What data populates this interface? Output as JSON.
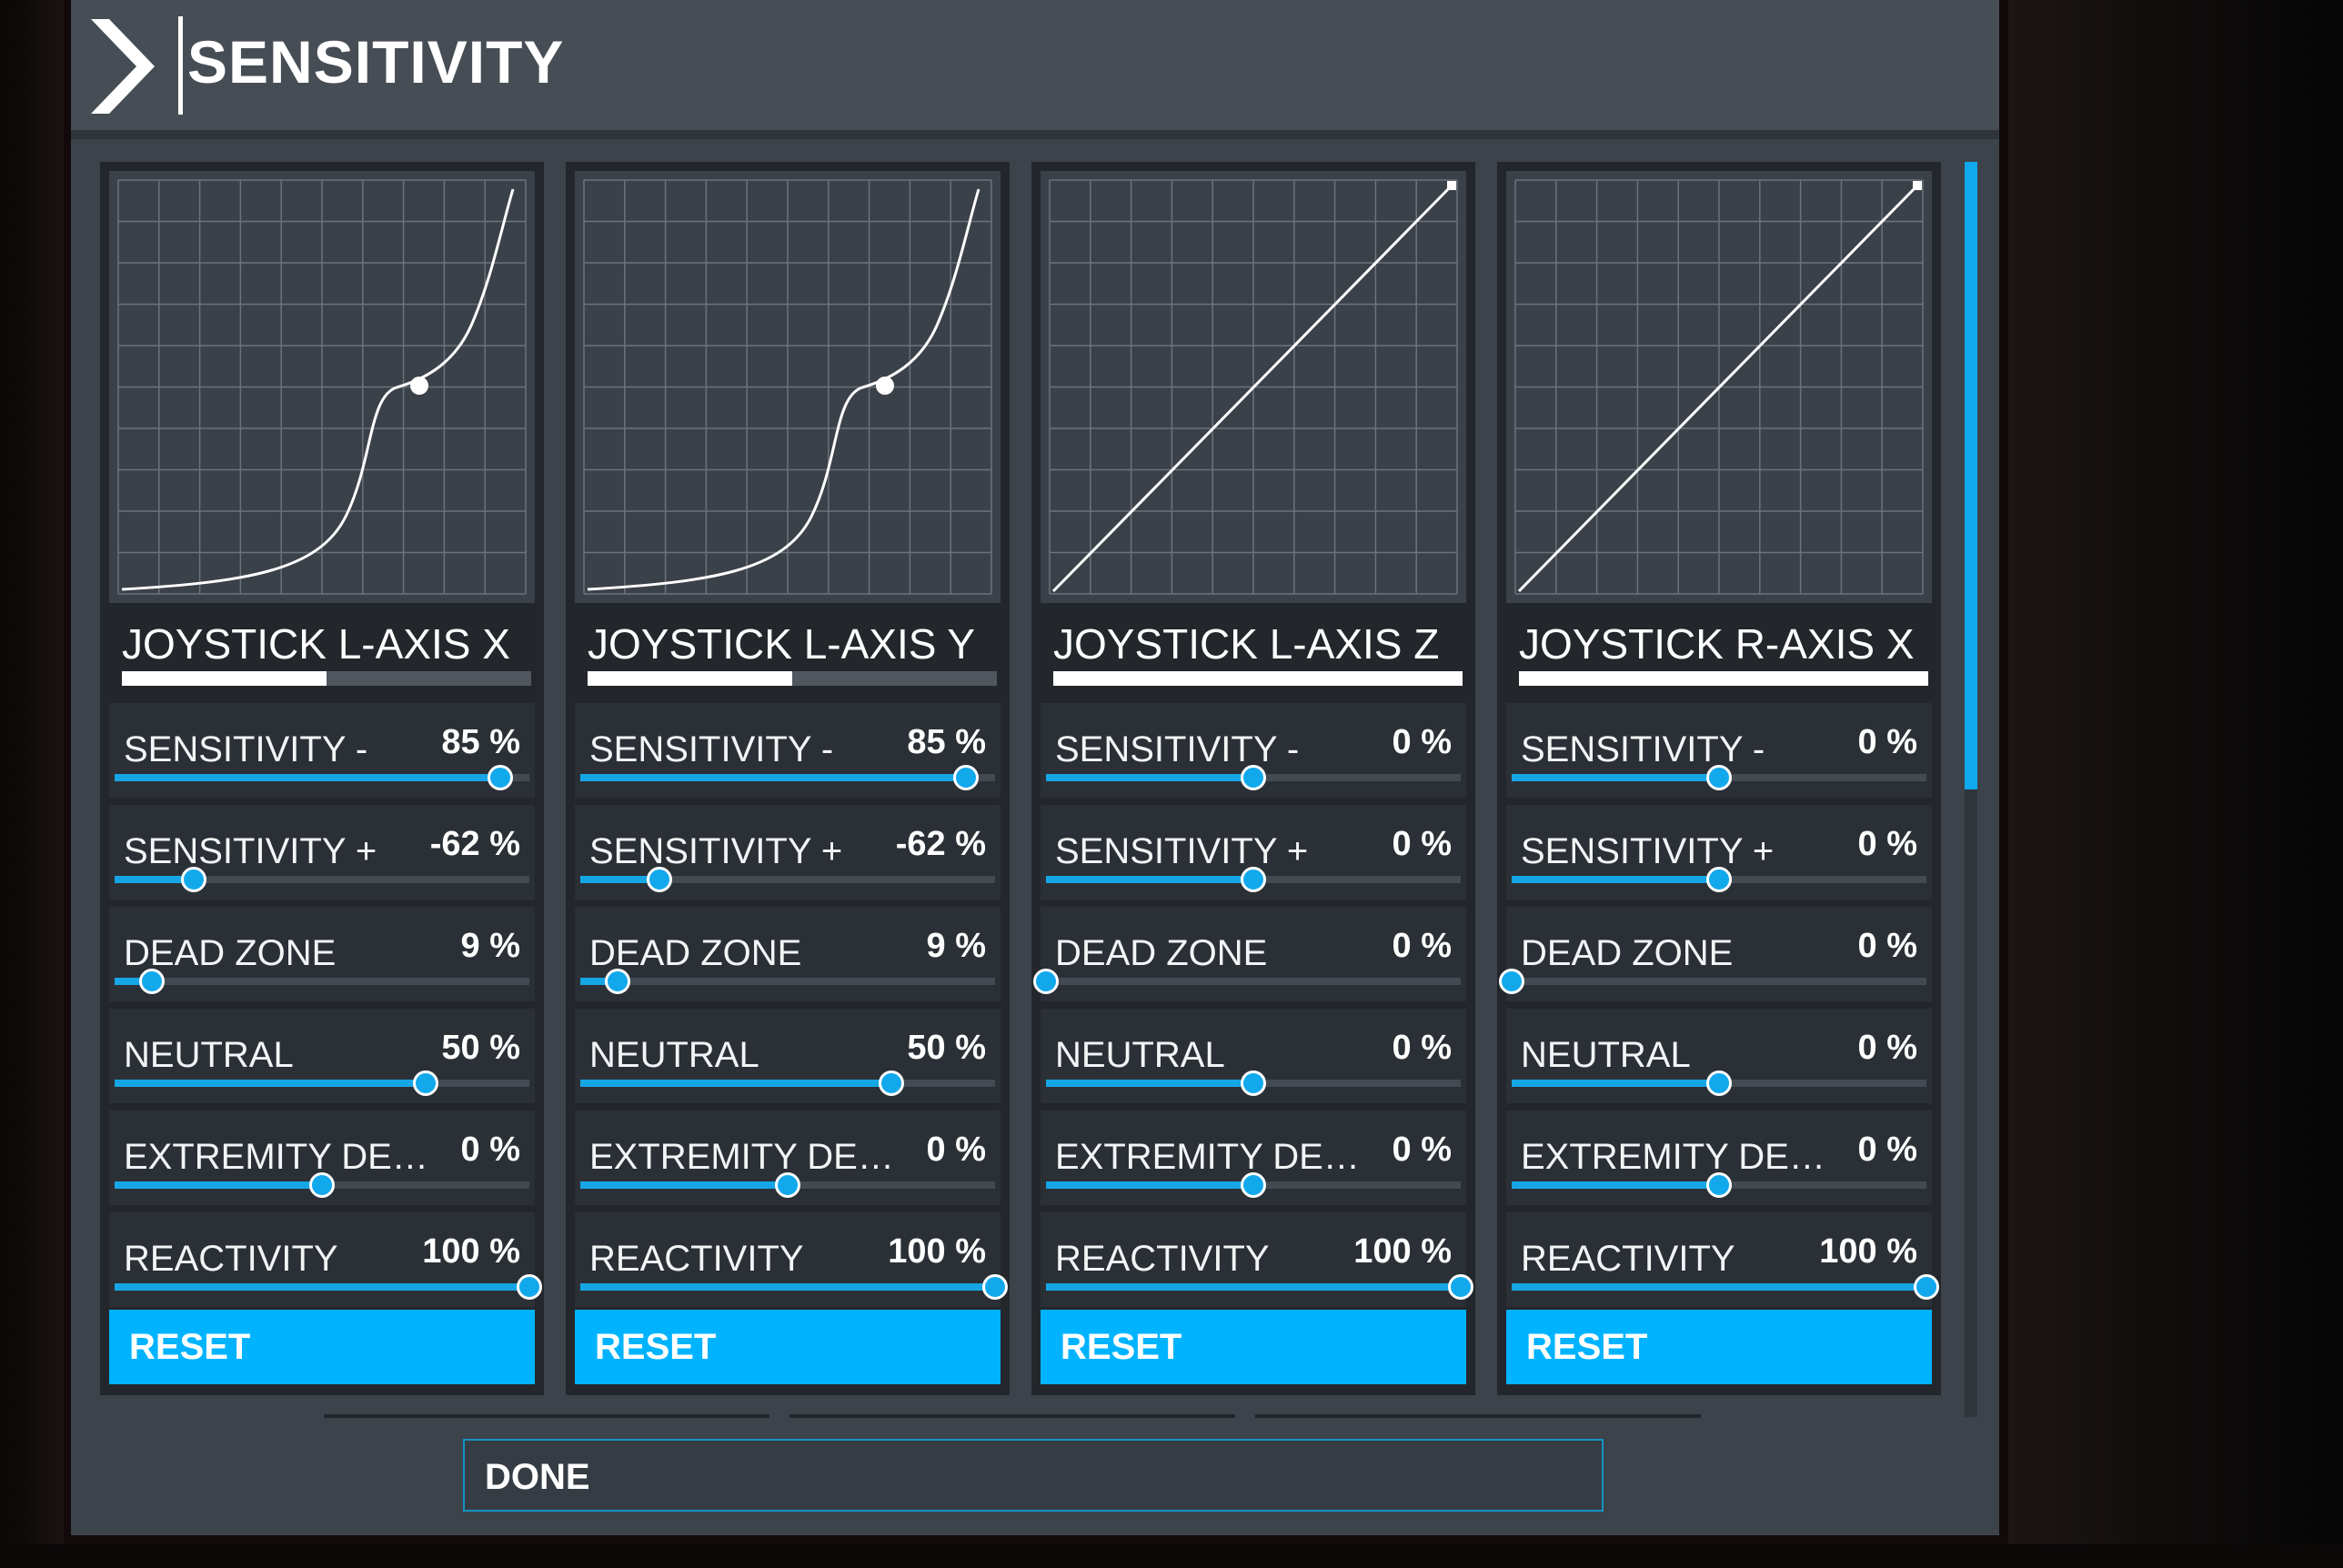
{
  "header": {
    "title": "SENSITIVITY",
    "icon": "chevron-right-icon"
  },
  "accent_color": "#00b3ff",
  "panels": [
    {
      "axis_title": "JOYSTICK L-AXIS X",
      "axis_level": 0.5,
      "curve": "exponential",
      "rows": [
        {
          "label": "SENSITIVITY -",
          "value": "85 %",
          "level": 0.93
        },
        {
          "label": "SENSITIVITY +",
          "value": "-62 %",
          "level": 0.19
        },
        {
          "label": "DEAD ZONE",
          "value": "9 %",
          "level": 0.09
        },
        {
          "label": "NEUTRAL",
          "value": "50 %",
          "level": 0.75
        },
        {
          "label": "EXTREMITY DEAD ZONE",
          "value": "0 %",
          "level": 0.5
        },
        {
          "label": "REACTIVITY",
          "value": "100 %",
          "level": 1.0
        }
      ],
      "reset_label": "RESET"
    },
    {
      "axis_title": "JOYSTICK L-AXIS Y",
      "axis_level": 0.5,
      "curve": "exponential",
      "rows": [
        {
          "label": "SENSITIVITY -",
          "value": "85 %",
          "level": 0.93
        },
        {
          "label": "SENSITIVITY +",
          "value": "-62 %",
          "level": 0.19
        },
        {
          "label": "DEAD ZONE",
          "value": "9 %",
          "level": 0.09
        },
        {
          "label": "NEUTRAL",
          "value": "50 %",
          "level": 0.75
        },
        {
          "label": "EXTREMITY DEAD ZONE",
          "value": "0 %",
          "level": 0.5
        },
        {
          "label": "REACTIVITY",
          "value": "100 %",
          "level": 1.0
        }
      ],
      "reset_label": "RESET"
    },
    {
      "axis_title": "JOYSTICK L-AXIS Z",
      "axis_level": 1.0,
      "curve": "linear",
      "rows": [
        {
          "label": "SENSITIVITY -",
          "value": "0 %",
          "level": 0.5
        },
        {
          "label": "SENSITIVITY +",
          "value": "0 %",
          "level": 0.5
        },
        {
          "label": "DEAD ZONE",
          "value": "0 %",
          "level": 0.0
        },
        {
          "label": "NEUTRAL",
          "value": "0 %",
          "level": 0.5
        },
        {
          "label": "EXTREMITY DEAD ZONE",
          "value": "0 %",
          "level": 0.5
        },
        {
          "label": "REACTIVITY",
          "value": "100 %",
          "level": 1.0
        }
      ],
      "reset_label": "RESET"
    },
    {
      "axis_title": "JOYSTICK R-AXIS X",
      "axis_level": 1.0,
      "curve": "linear",
      "rows": [
        {
          "label": "SENSITIVITY -",
          "value": "0 %",
          "level": 0.5
        },
        {
          "label": "SENSITIVITY +",
          "value": "0 %",
          "level": 0.5
        },
        {
          "label": "DEAD ZONE",
          "value": "0 %",
          "level": 0.0
        },
        {
          "label": "NEUTRAL",
          "value": "0 %",
          "level": 0.5
        },
        {
          "label": "EXTREMITY DEAD ZONE",
          "value": "0 %",
          "level": 0.5
        },
        {
          "label": "REACTIVITY",
          "value": "100 %",
          "level": 1.0
        }
      ],
      "reset_label": "RESET"
    }
  ],
  "done_label": "DONE"
}
